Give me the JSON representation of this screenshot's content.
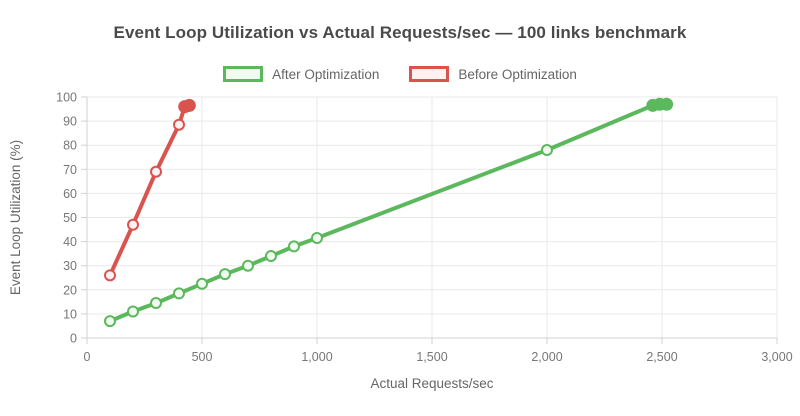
{
  "chart_data": {
    "type": "line",
    "title": "Event Loop Utilization vs Actual Requests/sec — 100 links benchmark",
    "xlabel": "Actual Requests/sec",
    "ylabel": "Event Loop Utilization (%)",
    "xlim": [
      0,
      3000
    ],
    "ylim": [
      0,
      100
    ],
    "grid": true,
    "legend_position": "top",
    "x_ticks": [
      0,
      500,
      1000,
      1500,
      2000,
      2500,
      3000
    ],
    "x_tick_labels": [
      "0",
      "500",
      "1,000",
      "1,500",
      "2,000",
      "2,500",
      "3,000"
    ],
    "y_ticks": [
      0,
      10,
      20,
      30,
      40,
      50,
      60,
      70,
      80,
      90,
      100
    ],
    "y_tick_labels": [
      "0",
      "10",
      "20",
      "30",
      "40",
      "50",
      "60",
      "70",
      "80",
      "90",
      "100"
    ],
    "series": [
      {
        "name": "After Optimization",
        "color": "#5cb85c",
        "fill": "#f0faf0",
        "points": [
          {
            "x": 100,
            "y": 7,
            "solid": false
          },
          {
            "x": 200,
            "y": 11,
            "solid": false
          },
          {
            "x": 300,
            "y": 14.5,
            "solid": false
          },
          {
            "x": 400,
            "y": 18.5,
            "solid": false
          },
          {
            "x": 500,
            "y": 22.5,
            "solid": false
          },
          {
            "x": 600,
            "y": 26.5,
            "solid": false
          },
          {
            "x": 700,
            "y": 30,
            "solid": false
          },
          {
            "x": 800,
            "y": 34,
            "solid": false
          },
          {
            "x": 900,
            "y": 38,
            "solid": false
          },
          {
            "x": 1000,
            "y": 41.5,
            "solid": false
          },
          {
            "x": 2000,
            "y": 78,
            "solid": false
          },
          {
            "x": 2460,
            "y": 96.5,
            "solid": true
          },
          {
            "x": 2490,
            "y": 97,
            "solid": true
          },
          {
            "x": 2520,
            "y": 97,
            "solid": true
          }
        ]
      },
      {
        "name": "Before Optimization",
        "color": "#d9534f",
        "fill": "#fdf2f1",
        "points": [
          {
            "x": 100,
            "y": 26,
            "solid": false
          },
          {
            "x": 200,
            "y": 47,
            "solid": false
          },
          {
            "x": 300,
            "y": 69,
            "solid": false
          },
          {
            "x": 400,
            "y": 88.5,
            "solid": false
          },
          {
            "x": 425,
            "y": 96,
            "solid": true
          },
          {
            "x": 445,
            "y": 96.5,
            "solid": true
          }
        ]
      }
    ],
    "style": {
      "grid_color": "#e9e9e9",
      "axis_color": "#d2d2d2",
      "tick_text_color": "#777777",
      "axis_title_color": "#666666",
      "title_color": "#4a4a4a"
    }
  }
}
